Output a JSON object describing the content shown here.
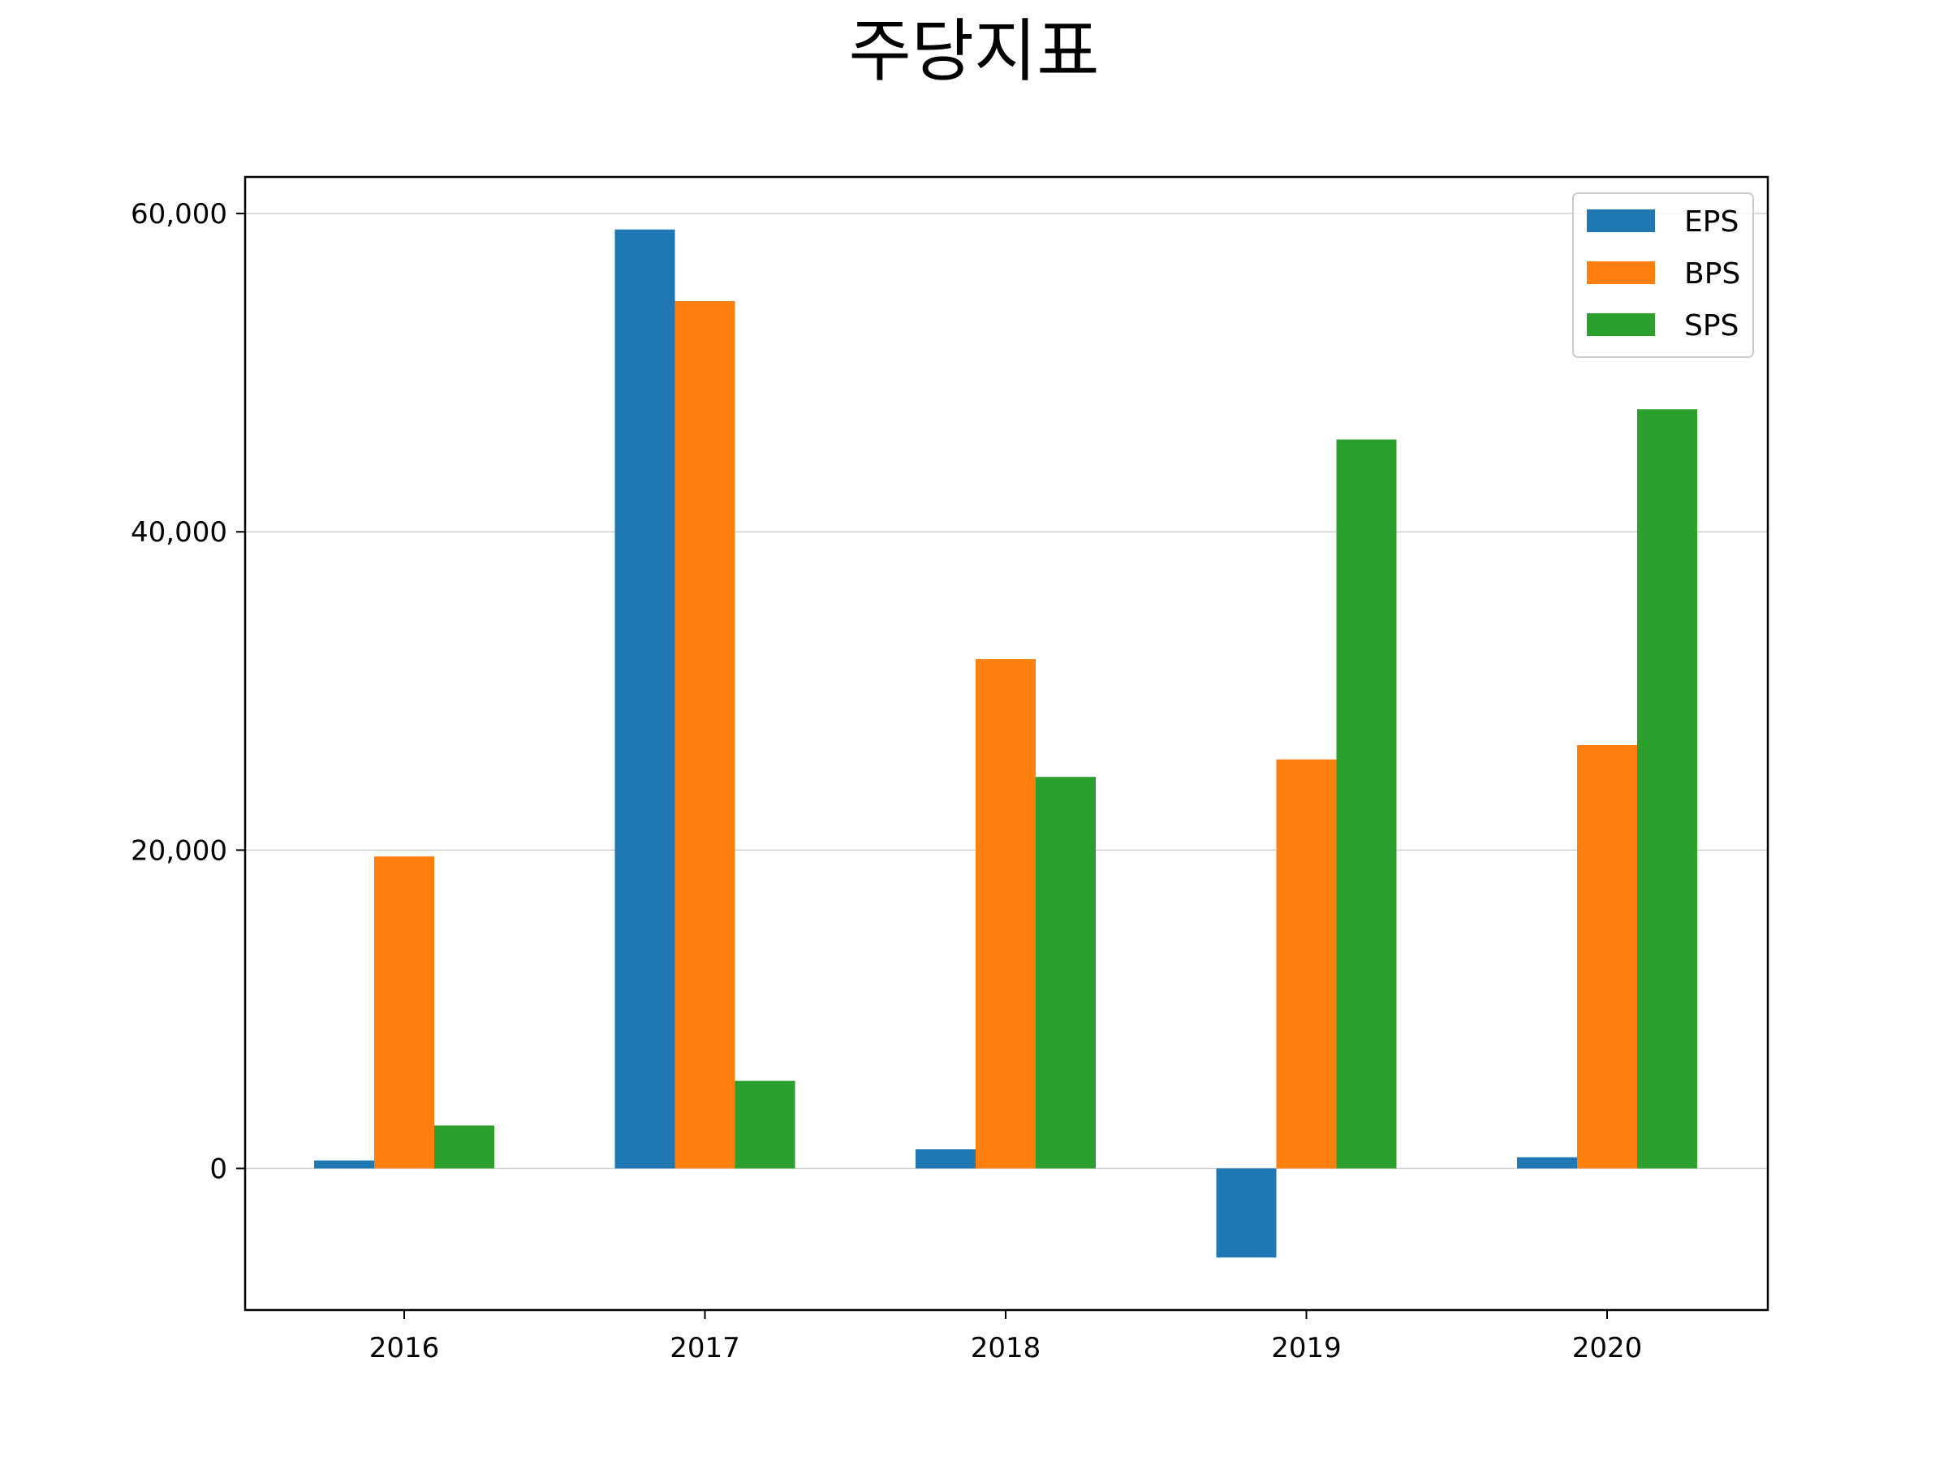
{
  "chart_data": {
    "type": "bar",
    "title": "주당지표",
    "xlabel": "",
    "ylabel": "",
    "categories": [
      "2016",
      "2017",
      "2018",
      "2019",
      "2020"
    ],
    "series": [
      {
        "name": "EPS",
        "color": "#1f77b4",
        "values": [
          500,
          59000,
          1200,
          -5600,
          700
        ]
      },
      {
        "name": "BPS",
        "color": "#ff7f0e",
        "values": [
          19600,
          54500,
          32000,
          25700,
          26600
        ]
      },
      {
        "name": "SPS",
        "color": "#2ca02c",
        "values": [
          2700,
          5500,
          24600,
          45800,
          47700
        ]
      }
    ],
    "ylim": [
      -8900,
      62300
    ],
    "yticks": [
      0,
      20000,
      40000,
      60000
    ],
    "ytick_labels": [
      "0",
      "20,000",
      "40,000",
      "60,000"
    ],
    "grid": "horizontal",
    "legend_position": "top-right"
  }
}
